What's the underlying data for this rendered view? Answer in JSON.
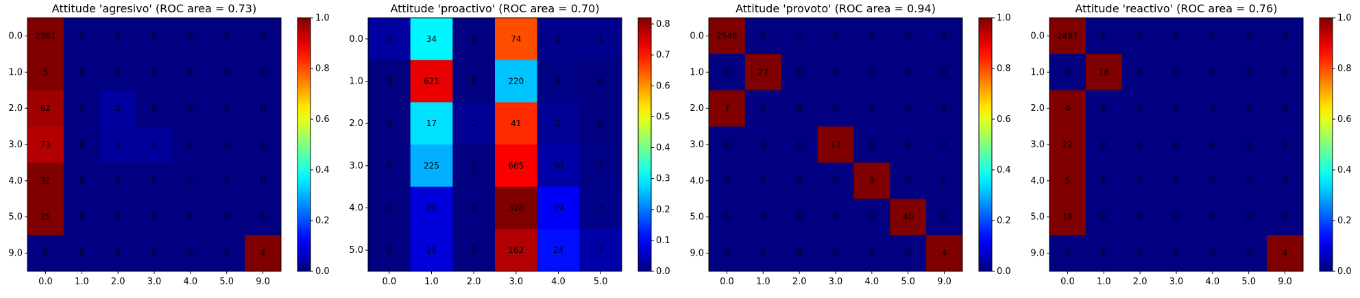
{
  "chart_data": [
    {
      "type": "heatmap",
      "title": "Attitude 'agresivo' (ROC area = 0.73)",
      "x_labels": [
        "0.0",
        "1.0",
        "2.0",
        "3.0",
        "4.0",
        "5.0",
        "9.0"
      ],
      "y_labels": [
        "0.0",
        "1.0",
        "2.0",
        "3.0",
        "4.0",
        "5.0",
        "9.0"
      ],
      "colorbar_ticks": [
        "0.0",
        "0.2",
        "0.4",
        "0.6",
        "0.8",
        "1.0"
      ],
      "colorbar_range": [
        0,
        1.0
      ],
      "colormap": "jet",
      "values": [
        [
          2361,
          0,
          0,
          0,
          0,
          0,
          0
        ],
        [
          5,
          0,
          0,
          0,
          0,
          0,
          0
        ],
        [
          62,
          0,
          2,
          0,
          0,
          0,
          0
        ],
        [
          73,
          0,
          2,
          2,
          0,
          0,
          0
        ],
        [
          32,
          0,
          0,
          0,
          0,
          0,
          0
        ],
        [
          25,
          0,
          0,
          0,
          0,
          0,
          0
        ],
        [
          0,
          0,
          0,
          0,
          0,
          0,
          4
        ]
      ]
    },
    {
      "type": "heatmap",
      "title": "Attitude 'proactivo' (ROC area = 0.70)",
      "x_labels": [
        "0.0",
        "1.0",
        "2.0",
        "3.0",
        "4.0",
        "5.0"
      ],
      "y_labels": [
        "0.0",
        "1.0",
        "2.0",
        "3.0",
        "4.0",
        "5.0"
      ],
      "colorbar_ticks": [
        "0.0",
        "0.1",
        "0.2",
        "0.3",
        "0.4",
        "0.5",
        "0.6",
        "0.7",
        "0.8"
      ],
      "colorbar_range": [
        0,
        0.82
      ],
      "colormap": "jet",
      "values": [
        [
          3,
          34,
          0,
          74,
          1,
          1
        ],
        [
          0,
          621,
          0,
          220,
          4,
          0
        ],
        [
          0,
          17,
          1,
          41,
          1,
          0
        ],
        [
          0,
          225,
          1,
          665,
          30,
          3
        ],
        [
          0,
          29,
          0,
          328,
          39,
          3
        ],
        [
          0,
          15,
          0,
          162,
          24,
          7
        ]
      ]
    },
    {
      "type": "heatmap",
      "title": "Attitude 'provoto' (ROC area = 0.94)",
      "x_labels": [
        "0.0",
        "1.0",
        "2.0",
        "3.0",
        "4.0",
        "5.0",
        "9.0"
      ],
      "y_labels": [
        "0.0",
        "1.0",
        "2.0",
        "3.0",
        "4.0",
        "5.0",
        "9.0"
      ],
      "colorbar_ticks": [
        "0.0",
        "0.2",
        "0.4",
        "0.6",
        "0.8",
        "1.0"
      ],
      "colorbar_range": [
        0,
        1.0
      ],
      "colormap": "jet",
      "values": [
        [
          2548,
          0,
          0,
          0,
          0,
          0,
          0
        ],
        [
          0,
          27,
          0,
          0,
          0,
          0,
          0
        ],
        [
          7,
          0,
          0,
          0,
          0,
          0,
          0
        ],
        [
          0,
          0,
          0,
          13,
          0,
          0,
          0
        ],
        [
          0,
          0,
          0,
          0,
          9,
          0,
          0
        ],
        [
          0,
          0,
          0,
          0,
          0,
          40,
          0
        ],
        [
          0,
          0,
          0,
          0,
          0,
          0,
          4
        ]
      ]
    },
    {
      "type": "heatmap",
      "title": "Attitude 'reactivo' (ROC area = 0.76)",
      "x_labels": [
        "0.0",
        "1.0",
        "2.0",
        "3.0",
        "4.0",
        "5.0",
        "9.0"
      ],
      "y_labels": [
        "0.0",
        "1.0",
        "2.0",
        "3.0",
        "4.0",
        "5.0",
        "9.0"
      ],
      "colorbar_ticks": [
        "0.0",
        "0.2",
        "0.4",
        "0.6",
        "0.8",
        "1.0"
      ],
      "colorbar_range": [
        0,
        1.0
      ],
      "colormap": "jet",
      "values": [
        [
          2497,
          0,
          0,
          0,
          0,
          0,
          0
        ],
        [
          0,
          18,
          0,
          0,
          0,
          0,
          0
        ],
        [
          4,
          0,
          0,
          0,
          0,
          0,
          0
        ],
        [
          22,
          0,
          0,
          0,
          0,
          0,
          0
        ],
        [
          5,
          0,
          0,
          0,
          0,
          0,
          0
        ],
        [
          18,
          0,
          0,
          0,
          0,
          0,
          0
        ],
        [
          0,
          0,
          0,
          0,
          0,
          0,
          4
        ]
      ]
    }
  ]
}
